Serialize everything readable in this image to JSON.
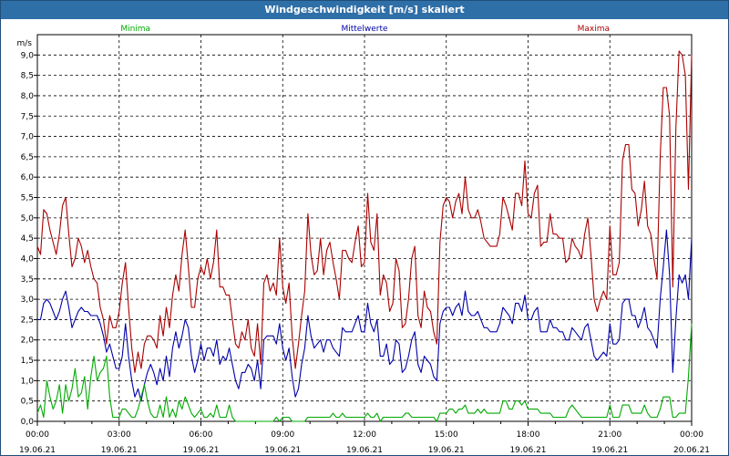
{
  "window": {
    "title": "Windgeschwindigkeit [m/s] skaliert"
  },
  "legend": [
    {
      "label": "Minima",
      "color": "#00aa00"
    },
    {
      "label": "Mittelwerte",
      "color": "#0000aa"
    },
    {
      "label": "Maxima",
      "color": "#aa0000"
    }
  ],
  "chart_data": {
    "type": "line",
    "title": "Windgeschwindigkeit [m/s] skaliert",
    "ylabel": "m/s",
    "xlabel": "",
    "ylim": [
      0,
      9.5
    ],
    "xlim_hours": [
      0,
      24
    ],
    "grid": true,
    "legend_position": "top",
    "y_ticks": [
      "0,0",
      "0,5",
      "1,0",
      "1,5",
      "2,0",
      "2,5",
      "3,0",
      "3,5",
      "4,0",
      "4,5",
      "5,0",
      "5,5",
      "6,0",
      "6,5",
      "7,0",
      "7,5",
      "8,0",
      "8,5",
      "9,0"
    ],
    "x_ticks": [
      {
        "time": "00:00",
        "date": "19.06.21"
      },
      {
        "time": "03:00",
        "date": "19.06.21"
      },
      {
        "time": "06:00",
        "date": "19.06.21"
      },
      {
        "time": "09:00",
        "date": "19.06.21"
      },
      {
        "time": "12:00",
        "date": "19.06.21"
      },
      {
        "time": "15:00",
        "date": "19.06.21"
      },
      {
        "time": "18:00",
        "date": "19.06.21"
      },
      {
        "time": "21:00",
        "date": "19.06.21"
      },
      {
        "time": "00:00",
        "date": "20.06.21"
      }
    ],
    "series": [
      {
        "name": "Maxima",
        "color": "#aa0000",
        "values": [
          4.3,
          4.1,
          5.2,
          5.1,
          4.7,
          4.4,
          4.1,
          4.6,
          5.3,
          5.5,
          4.6,
          3.8,
          4.0,
          4.5,
          4.3,
          3.9,
          4.2,
          3.8,
          3.5,
          3.4,
          2.8,
          2.5,
          1.9,
          2.6,
          2.3,
          2.3,
          2.7,
          3.4,
          3.9,
          2.8,
          1.8,
          1.2,
          1.7,
          1.3,
          1.9,
          2.1,
          2.1,
          2.0,
          1.8,
          2.6,
          2.1,
          2.8,
          2.3,
          3.1,
          3.6,
          3.2,
          4.1,
          4.7,
          3.8,
          2.8,
          2.8,
          3.5,
          3.8,
          3.6,
          4.0,
          3.5,
          3.9,
          4.7,
          3.3,
          3.3,
          3.1,
          3.1,
          2.5,
          1.9,
          1.8,
          2.2,
          2.0,
          2.5,
          1.8,
          1.6,
          2.4,
          1.4,
          3.4,
          3.6,
          3.2,
          3.4,
          3.1,
          4.5,
          3.3,
          2.9,
          3.4,
          2.1,
          1.3,
          1.9,
          2.6,
          3.2,
          5.1,
          4.1,
          3.6,
          3.7,
          4.5,
          3.6,
          4.2,
          4.4,
          3.9,
          3.5,
          3.0,
          4.2,
          4.2,
          4.0,
          3.9,
          4.4,
          4.8,
          3.8,
          3.9,
          5.6,
          4.4,
          4.2,
          5.1,
          3.1,
          3.6,
          3.4,
          2.7,
          2.9,
          4.0,
          3.7,
          2.3,
          2.4,
          3.0,
          4.0,
          4.3,
          2.6,
          2.3,
          3.2,
          2.8,
          2.7,
          2.2,
          1.9,
          4.4,
          5.3,
          5.5,
          5.4,
          5.0,
          5.4,
          5.6,
          5.1,
          6.0,
          5.2,
          5.0,
          5.0,
          5.2,
          4.9,
          4.5,
          4.4,
          4.3,
          4.3,
          4.3,
          4.6,
          5.5,
          5.3,
          5.0,
          4.7,
          5.6,
          5.6,
          5.3,
          6.4,
          5.1,
          5.0,
          5.6,
          5.8,
          4.3,
          4.4,
          4.4,
          5.1,
          4.6,
          4.6,
          4.5,
          4.5,
          3.9,
          4.0,
          4.5,
          4.3,
          4.2,
          4.0,
          4.6,
          5.0,
          4.1,
          3.0,
          2.7,
          3.0,
          3.2,
          3.0,
          4.8,
          3.6,
          3.6,
          3.9,
          6.4,
          6.8,
          6.8,
          5.7,
          5.6,
          4.8,
          5.2,
          5.9,
          4.8,
          4.6,
          4.0,
          3.5,
          6.5,
          8.2,
          8.2,
          7.5,
          3.3,
          7.2,
          9.1,
          9.0,
          8.5,
          5.7,
          9.0
        ]
      },
      {
        "name": "Mittelwerte",
        "color": "#0000aa",
        "values": [
          2.5,
          2.5,
          2.9,
          3.0,
          2.9,
          2.7,
          2.5,
          2.7,
          3.0,
          3.2,
          2.8,
          2.3,
          2.5,
          2.7,
          2.8,
          2.7,
          2.7,
          2.6,
          2.6,
          2.6,
          2.4,
          2.1,
          1.7,
          1.9,
          1.6,
          1.3,
          1.3,
          1.6,
          2.4,
          1.6,
          1.0,
          0.6,
          0.8,
          0.5,
          0.9,
          1.2,
          1.4,
          1.2,
          0.9,
          1.3,
          1.0,
          1.6,
          1.1,
          1.8,
          2.2,
          1.8,
          2.1,
          2.5,
          2.3,
          1.6,
          1.2,
          1.5,
          1.9,
          1.5,
          1.8,
          1.8,
          1.6,
          2.0,
          1.4,
          1.6,
          1.5,
          1.8,
          1.4,
          1.0,
          0.8,
          1.2,
          1.2,
          1.4,
          1.3,
          1.0,
          1.5,
          0.8,
          2.0,
          2.1,
          2.1,
          2.1,
          1.9,
          2.4,
          1.8,
          1.5,
          1.8,
          1.1,
          0.6,
          0.8,
          1.4,
          1.8,
          2.6,
          2.1,
          1.8,
          1.9,
          2.0,
          1.7,
          2.0,
          2.0,
          1.8,
          1.7,
          1.6,
          2.3,
          2.2,
          2.2,
          2.2,
          2.4,
          2.6,
          2.2,
          2.2,
          2.9,
          2.4,
          2.2,
          2.5,
          1.6,
          1.6,
          1.9,
          1.4,
          1.5,
          2.0,
          1.9,
          1.2,
          1.3,
          1.6,
          2.0,
          2.2,
          1.4,
          1.2,
          1.6,
          1.5,
          1.4,
          1.1,
          1.0,
          2.4,
          2.7,
          2.8,
          2.8,
          2.6,
          2.8,
          2.9,
          2.6,
          3.2,
          2.7,
          2.6,
          2.6,
          2.7,
          2.5,
          2.3,
          2.3,
          2.2,
          2.2,
          2.2,
          2.4,
          2.8,
          2.7,
          2.6,
          2.4,
          2.9,
          2.9,
          2.7,
          3.1,
          2.5,
          2.5,
          2.7,
          2.8,
          2.2,
          2.2,
          2.2,
          2.5,
          2.3,
          2.3,
          2.2,
          2.2,
          2.0,
          2.0,
          2.3,
          2.2,
          2.1,
          2.0,
          2.3,
          2.4,
          2.0,
          1.6,
          1.5,
          1.6,
          1.7,
          1.6,
          2.4,
          1.9,
          1.9,
          2.0,
          2.9,
          3.0,
          3.0,
          2.6,
          2.6,
          2.3,
          2.5,
          2.8,
          2.3,
          2.2,
          2.0,
          1.8,
          3.0,
          3.8,
          4.7,
          3.6,
          1.2,
          2.5,
          3.6,
          3.4,
          3.6,
          3.0,
          4.5
        ]
      },
      {
        "name": "Minima",
        "color": "#00aa00",
        "values": [
          0.2,
          0.4,
          0.1,
          1.0,
          0.6,
          0.3,
          0.5,
          0.9,
          0.2,
          0.9,
          0.5,
          0.8,
          1.3,
          0.6,
          0.7,
          1.1,
          0.3,
          1.1,
          1.6,
          1.0,
          1.2,
          1.3,
          1.6,
          0.6,
          0.1,
          0.1,
          0.1,
          0.3,
          0.3,
          0.2,
          0.1,
          0.1,
          0.3,
          0.6,
          0.9,
          0.5,
          0.2,
          0.1,
          0.1,
          0.4,
          0.1,
          0.6,
          0.1,
          0.3,
          0.1,
          0.5,
          0.3,
          0.6,
          0.4,
          0.2,
          0.1,
          0.2,
          0.3,
          0.1,
          0.1,
          0.2,
          0.1,
          0.4,
          0.1,
          0.1,
          0.1,
          0.4,
          0.1,
          0.0,
          0.0,
          0.0,
          0.0,
          0.0,
          0.0,
          0.0,
          0.0,
          0.0,
          0.0,
          0.0,
          0.0,
          0.0,
          0.1,
          0.0,
          0.1,
          0.1,
          0.1,
          0.0,
          0.0,
          0.0,
          0.0,
          0.0,
          0.1,
          0.1,
          0.1,
          0.1,
          0.1,
          0.1,
          0.1,
          0.1,
          0.2,
          0.1,
          0.1,
          0.2,
          0.1,
          0.1,
          0.1,
          0.1,
          0.1,
          0.1,
          0.1,
          0.2,
          0.1,
          0.1,
          0.2,
          0.0,
          0.1,
          0.1,
          0.1,
          0.1,
          0.1,
          0.1,
          0.1,
          0.2,
          0.2,
          0.1,
          0.1,
          0.1,
          0.1,
          0.1,
          0.1,
          0.1,
          0.1,
          0.0,
          0.2,
          0.2,
          0.2,
          0.3,
          0.3,
          0.2,
          0.3,
          0.3,
          0.4,
          0.2,
          0.2,
          0.2,
          0.3,
          0.2,
          0.3,
          0.2,
          0.2,
          0.2,
          0.2,
          0.2,
          0.5,
          0.5,
          0.3,
          0.3,
          0.5,
          0.5,
          0.4,
          0.5,
          0.3,
          0.3,
          0.3,
          0.3,
          0.2,
          0.2,
          0.2,
          0.2,
          0.1,
          0.1,
          0.1,
          0.1,
          0.1,
          0.3,
          0.4,
          0.3,
          0.2,
          0.1,
          0.1,
          0.1,
          0.1,
          0.1,
          0.1,
          0.1,
          0.1,
          0.1,
          0.4,
          0.1,
          0.1,
          0.1,
          0.4,
          0.4,
          0.4,
          0.2,
          0.2,
          0.2,
          0.2,
          0.4,
          0.2,
          0.1,
          0.1,
          0.1,
          0.3,
          0.6,
          0.6,
          0.6,
          0.1,
          0.1,
          0.2,
          0.2,
          0.2,
          1.1,
          2.4
        ]
      }
    ]
  }
}
